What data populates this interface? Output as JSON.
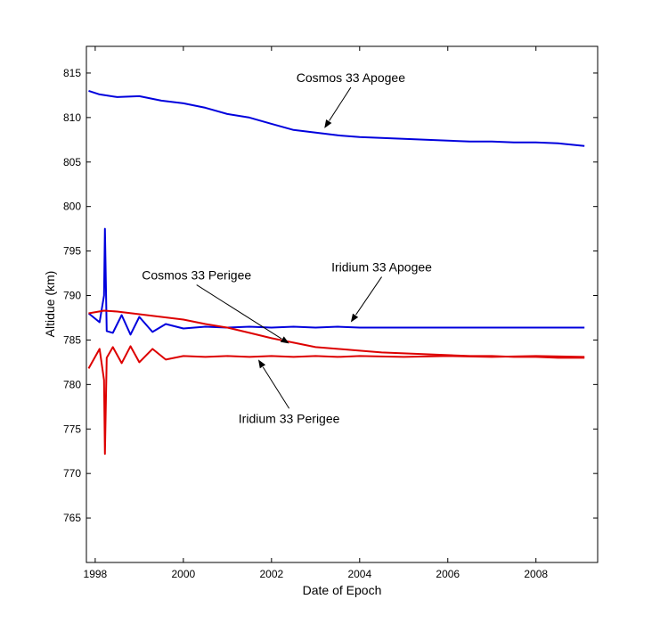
{
  "chart_data": {
    "type": "line",
    "title": "",
    "xlabel": "Date of Epoch",
    "ylabel": "Altidue (km)",
    "xlim": [
      1997.8,
      2009.4
    ],
    "ylim": [
      760,
      818
    ],
    "xticks": [
      1998,
      2000,
      2002,
      2004,
      2006,
      2008
    ],
    "yticks": [
      765,
      770,
      775,
      780,
      785,
      790,
      795,
      800,
      805,
      810,
      815
    ],
    "grid": false,
    "legend": "none",
    "series": [
      {
        "color": "#0000dd",
        "x": [
          1997.85,
          1998.1,
          1998.5,
          1999.0,
          1999.5,
          2000.0,
          2000.5,
          2001.0,
          2001.5,
          2002.0,
          2002.5,
          2003.0,
          2003.5,
          2004.0,
          2004.5,
          2005.0,
          2005.5,
          2006.0,
          2006.5,
          2007.0,
          2007.5,
          2008.0,
          2008.5,
          2009.1
        ],
        "y": [
          813.0,
          812.6,
          812.3,
          812.4,
          811.9,
          811.6,
          811.1,
          810.4,
          810.0,
          809.3,
          808.6,
          808.3,
          808.0,
          807.8,
          807.7,
          807.6,
          807.5,
          807.4,
          807.3,
          807.3,
          807.2,
          807.2,
          807.1,
          806.8
        ]
      },
      {
        "color": "#0000dd",
        "x": [
          1997.85,
          1998.1,
          1998.2,
          1998.22,
          1998.26,
          1998.4,
          1998.6,
          1998.8,
          1999.0,
          1999.3,
          1999.6,
          2000.0,
          2000.5,
          2001.0,
          2001.5,
          2002.0,
          2002.5,
          2003.0,
          2003.5,
          2004.0,
          2005.0,
          2006.0,
          2007.0,
          2008.0,
          2009.1
        ],
        "y": [
          788.0,
          787.0,
          790.0,
          797.5,
          786.0,
          785.8,
          787.8,
          785.6,
          787.6,
          785.9,
          786.8,
          786.3,
          786.5,
          786.4,
          786.5,
          786.4,
          786.5,
          786.4,
          786.5,
          786.4,
          786.4,
          786.4,
          786.4,
          786.4,
          786.4
        ]
      },
      {
        "color": "#dd0000",
        "x": [
          1997.85,
          1998.2,
          1998.5,
          1999.0,
          1999.5,
          2000.0,
          2000.5,
          2001.0,
          2001.5,
          2002.0,
          2002.5,
          2003.0,
          2003.5,
          2004.0,
          2004.5,
          2005.0,
          2005.5,
          2006.0,
          2006.5,
          2007.0,
          2007.5,
          2008.0,
          2008.5,
          2009.1
        ],
        "y": [
          788.0,
          788.3,
          788.2,
          787.9,
          787.6,
          787.3,
          786.8,
          786.4,
          785.8,
          785.2,
          784.7,
          784.2,
          784.0,
          783.8,
          783.6,
          783.5,
          783.4,
          783.3,
          783.2,
          783.2,
          783.1,
          783.1,
          783.0,
          783.0
        ]
      },
      {
        "color": "#dd0000",
        "x": [
          1997.85,
          1998.1,
          1998.2,
          1998.22,
          1998.26,
          1998.4,
          1998.6,
          1998.8,
          1999.0,
          1999.3,
          1999.6,
          2000.0,
          2000.5,
          2001.0,
          2001.5,
          2002.0,
          2002.5,
          2003.0,
          2003.5,
          2004.0,
          2005.0,
          2006.0,
          2007.0,
          2008.0,
          2009.1
        ],
        "y": [
          781.8,
          784.0,
          780.5,
          772.2,
          783.0,
          784.2,
          782.4,
          784.3,
          782.5,
          784.0,
          782.8,
          783.2,
          783.1,
          783.2,
          783.1,
          783.2,
          783.1,
          783.2,
          783.1,
          783.2,
          783.1,
          783.2,
          783.1,
          783.2,
          783.1
        ]
      }
    ],
    "annotations": [
      {
        "text": "Cosmos 33 Apogee",
        "tx": 2003.8,
        "ty": 814.0,
        "ax": 2003.2,
        "ay": 808.8
      },
      {
        "text": "Iridium 33 Apogee",
        "tx": 2004.5,
        "ty": 792.7,
        "ax": 2003.8,
        "ay": 787.0
      },
      {
        "text": "Cosmos 33 Perigee",
        "tx": 2000.3,
        "ty": 791.8,
        "ax": 2002.4,
        "ay": 784.6
      },
      {
        "text": "Iridium 33 Perigee",
        "tx": 2002.4,
        "ty": 775.7,
        "ax": 2001.7,
        "ay": 782.8
      }
    ]
  }
}
